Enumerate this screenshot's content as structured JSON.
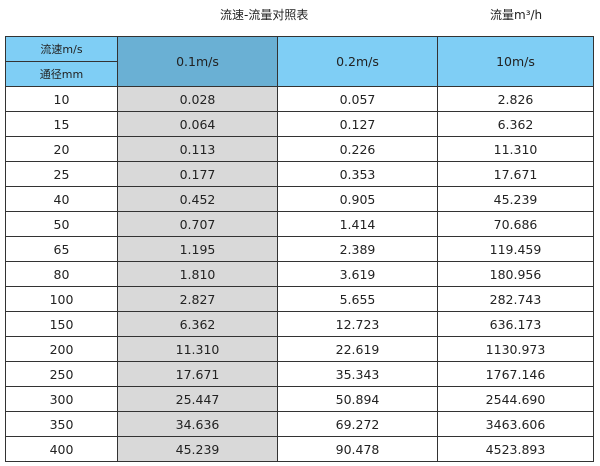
{
  "title": "流速-流量对照表",
  "unit_label": "流量m³/h",
  "header": {
    "velocity_label": "流速m/s",
    "diameter_label": "通径mm",
    "columns": [
      "0.1m/s",
      "0.2m/s",
      "10m/s"
    ]
  },
  "colors": {
    "header": "#7fcef5",
    "selected_header": "#6ab0d4",
    "selected_column": "#d9d9d9"
  },
  "rows": [
    [
      "10",
      "0.028",
      "0.057",
      "2.826"
    ],
    [
      "15",
      "0.064",
      "0.127",
      "6.362"
    ],
    [
      "20",
      "0.113",
      "0.226",
      "11.310"
    ],
    [
      "25",
      "0.177",
      "0.353",
      "17.671"
    ],
    [
      "40",
      "0.452",
      "0.905",
      "45.239"
    ],
    [
      "50",
      "0.707",
      "1.414",
      "70.686"
    ],
    [
      "65",
      "1.195",
      "2.389",
      "119.459"
    ],
    [
      "80",
      "1.810",
      "3.619",
      "180.956"
    ],
    [
      "100",
      "2.827",
      "5.655",
      "282.743"
    ],
    [
      "150",
      "6.362",
      "12.723",
      "636.173"
    ],
    [
      "200",
      "11.310",
      "22.619",
      "1130.973"
    ],
    [
      "250",
      "17.671",
      "35.343",
      "1767.146"
    ],
    [
      "300",
      "25.447",
      "50.894",
      "2544.690"
    ],
    [
      "350",
      "34.636",
      "69.272",
      "3463.606"
    ],
    [
      "400",
      "45.239",
      "90.478",
      "4523.893"
    ]
  ]
}
